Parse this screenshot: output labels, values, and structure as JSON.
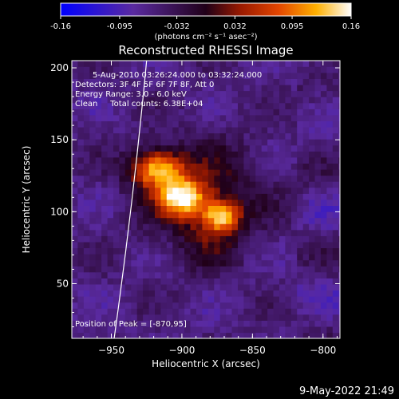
{
  "chart_data": {
    "type": "heatmap",
    "title": "Reconstructed RHESSI Image",
    "xlabel": "Heliocentric X (arcsec)",
    "ylabel": "Heliocentric Y (arcsec)",
    "xlim": [
      -978,
      -788
    ],
    "ylim": [
      12,
      205
    ],
    "x_ticks": [
      -950,
      -900,
      -850,
      -800
    ],
    "y_ticks": [
      50,
      100,
      150,
      200
    ],
    "colorbar": {
      "min": -0.16,
      "max": 0.16,
      "ticks": [
        -0.16,
        -0.095,
        -0.032,
        0.032,
        0.095,
        0.16
      ],
      "tick_labels": [
        "-0.16",
        "-0.095",
        "-0.032",
        "0.032",
        "0.095",
        "0.16"
      ],
      "units": "(photons cm⁻² s⁻¹ asec⁻²)"
    },
    "annotations": [
      "5-Aug-2010 03:26:24.000 to 03:32:24.000",
      "Detectors: 3F 4F 5F 6F 7F 8F, Att 0",
      "Energy Range: 3.0 - 6.0 keV",
      "Clean     Total counts: 6.38E+04"
    ],
    "peak_label": "Position of Peak = [-870,95]",
    "peak": [
      -870,
      95
    ],
    "sources": [
      {
        "x": -918,
        "y": 130,
        "sx": 13,
        "sy": 9,
        "amp": 0.17
      },
      {
        "x": -900,
        "y": 110,
        "sx": 12,
        "sy": 9,
        "amp": 0.17
      },
      {
        "x": -872,
        "y": 97,
        "sx": 9,
        "sy": 7,
        "amp": 0.15
      },
      {
        "x": -885,
        "y": 112,
        "sx": 30,
        "sy": 26,
        "amp": 0.07
      },
      {
        "x": -880,
        "y": 80,
        "sx": 14,
        "sy": 14,
        "amp": 0.035
      }
    ],
    "limb": {
      "x_top": -925,
      "x_bottom": -948
    }
  },
  "footer": {
    "date": "9-May-2022 21:49"
  }
}
